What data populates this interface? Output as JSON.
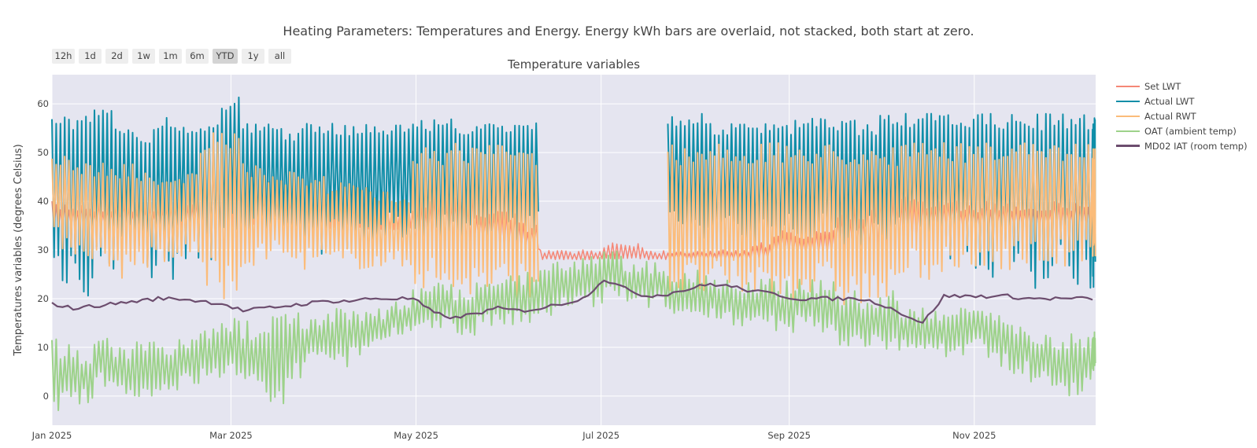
{
  "title": "Heating Parameters: Temperatures and Energy. Energy kWh bars are overlaid, not stacked, both start at zero.",
  "range_selector": {
    "buttons": [
      {
        "label": "12h",
        "active": false
      },
      {
        "label": "1d",
        "active": false
      },
      {
        "label": "2d",
        "active": false
      },
      {
        "label": "1w",
        "active": false
      },
      {
        "label": "1m",
        "active": false
      },
      {
        "label": "6m",
        "active": false
      },
      {
        "label": "YTD",
        "active": true
      },
      {
        "label": "1y",
        "active": false
      },
      {
        "label": "all",
        "active": false
      }
    ]
  },
  "chart_data": {
    "type": "line",
    "title": "Temperature variables",
    "xlabel": "",
    "ylabel": "Temperatures variables (degrees Celsius)",
    "x_range": [
      "2025-01-01",
      "2025-12-11"
    ],
    "ylim": [
      -6,
      66
    ],
    "x_ticks": [
      "Jan 2025",
      "Mar 2025",
      "May 2025",
      "Jul 2025",
      "Sep 2025",
      "Nov 2025"
    ],
    "y_ticks": [
      0,
      10,
      20,
      30,
      40,
      50,
      60
    ],
    "grid": true,
    "legend_position": "right",
    "x_sampling": "weekly",
    "x": [
      "Jan 1",
      "Jan 8",
      "Jan 15",
      "Jan 22",
      "Jan 29",
      "Feb 5",
      "Feb 12",
      "Feb 19",
      "Feb 26",
      "Mar 5",
      "Mar 12",
      "Mar 19",
      "Mar 26",
      "Apr 2",
      "Apr 9",
      "Apr 16",
      "Apr 23",
      "Apr 30",
      "May 7",
      "May 14",
      "May 21",
      "May 28",
      "Jun 4",
      "Jun 11",
      "Jun 18",
      "Jun 25",
      "Jul 2",
      "Jul 9",
      "Jul 16",
      "Jul 23",
      "Jul 30",
      "Aug 6",
      "Aug 13",
      "Aug 20",
      "Aug 27",
      "Sep 3",
      "Sep 10",
      "Sep 17",
      "Sep 24",
      "Oct 1",
      "Oct 8",
      "Oct 15",
      "Oct 22",
      "Oct 29",
      "Nov 5",
      "Nov 12",
      "Nov 19",
      "Nov 26",
      "Dec 3",
      "Dec 10"
    ],
    "series": [
      {
        "name": "Set LWT",
        "color": "#f58776",
        "low": [
          34,
          34,
          34,
          34,
          34,
          34,
          34,
          34,
          34,
          34,
          34,
          34,
          34,
          34,
          34,
          34,
          34,
          31,
          31,
          31,
          31,
          30,
          30,
          28,
          28,
          28,
          28,
          28,
          28,
          28,
          28,
          28,
          28,
          28,
          29,
          29,
          29,
          30,
          30,
          30,
          31,
          34,
          34,
          34,
          34,
          34,
          34,
          34,
          34,
          34
        ],
        "high": [
          40,
          40,
          40,
          40,
          40,
          40,
          42,
          50,
          52,
          48,
          44,
          44,
          42,
          42,
          42,
          40,
          40,
          42,
          44,
          42,
          40,
          38,
          36,
          30,
          30,
          30,
          32,
          32,
          30,
          30,
          30,
          30,
          30,
          32,
          34,
          34,
          36,
          40,
          40,
          44,
          44,
          40,
          40,
          40,
          40,
          40,
          40,
          40,
          40,
          40
        ]
      },
      {
        "name": "Actual LWT",
        "color": "#0f8ea8",
        "low": [
          22,
          20,
          24,
          28,
          24,
          22,
          28,
          26,
          28,
          30,
          30,
          28,
          28,
          30,
          30,
          30,
          30,
          30,
          31,
          30,
          30,
          30,
          30,
          null,
          null,
          null,
          null,
          null,
          null,
          30,
          30,
          30,
          30,
          30,
          30,
          30,
          30,
          30,
          30,
          30,
          28,
          28,
          28,
          26,
          24,
          24,
          22,
          22,
          22,
          22
        ],
        "high": [
          58,
          58,
          59,
          56,
          55,
          58,
          56,
          57,
          62,
          56,
          56,
          55,
          56,
          56,
          56,
          56,
          56,
          57,
          57,
          56,
          56,
          56,
          57,
          null,
          null,
          null,
          null,
          null,
          null,
          58,
          58,
          56,
          56,
          56,
          56,
          57,
          57,
          57,
          56,
          58,
          58,
          58,
          58,
          58,
          58,
          58,
          58,
          58,
          58,
          58
        ]
      },
      {
        "name": "Actual RWT",
        "color": "#fbbc7a",
        "low": [
          30,
          28,
          26,
          24,
          26,
          26,
          28,
          22,
          18,
          26,
          28,
          26,
          26,
          26,
          26,
          26,
          26,
          22,
          20,
          20,
          20,
          20,
          20,
          null,
          null,
          null,
          null,
          null,
          null,
          20,
          20,
          20,
          20,
          20,
          20,
          20,
          20,
          18,
          18,
          18,
          24,
          24,
          24,
          24,
          26,
          26,
          26,
          26,
          26,
          26
        ],
        "high": [
          50,
          48,
          48,
          48,
          46,
          46,
          46,
          54,
          54,
          48,
          46,
          46,
          46,
          44,
          44,
          42,
          42,
          52,
          52,
          52,
          52,
          52,
          52,
          null,
          null,
          null,
          null,
          null,
          null,
          52,
          52,
          52,
          52,
          52,
          52,
          52,
          52,
          52,
          52,
          52,
          52,
          52,
          52,
          52,
          52,
          52,
          52,
          52,
          52,
          52
        ]
      },
      {
        "name": "OAT (ambient temp)",
        "color": "#9dd28a",
        "low": [
          -3,
          -2,
          2,
          0,
          -1,
          1,
          2,
          3,
          4,
          0,
          -2,
          3,
          8,
          6,
          8,
          10,
          12,
          14,
          14,
          12,
          14,
          14,
          14,
          16,
          18,
          18,
          20,
          18,
          18,
          16,
          16,
          16,
          14,
          14,
          12,
          14,
          12,
          10,
          10,
          8,
          10,
          8,
          8,
          10,
          6,
          4,
          2,
          0,
          0,
          4
        ],
        "high": [
          12,
          10,
          12,
          10,
          12,
          10,
          12,
          14,
          16,
          16,
          18,
          18,
          16,
          18,
          18,
          18,
          20,
          22,
          24,
          22,
          24,
          26,
          26,
          28,
          28,
          30,
          30,
          28,
          28,
          26,
          26,
          24,
          24,
          24,
          24,
          24,
          24,
          22,
          20,
          22,
          18,
          18,
          18,
          18,
          18,
          16,
          14,
          12,
          14,
          14
        ]
      },
      {
        "name": "MD02 IAT (room temp)",
        "color": "#6c4d6e",
        "values": [
          19,
          18,
          18.5,
          19,
          19.5,
          20,
          20,
          19.5,
          19,
          17.5,
          18,
          18.5,
          19,
          19.5,
          19.5,
          20,
          20,
          20,
          17,
          16,
          17,
          18,
          17.5,
          18,
          19,
          20,
          24,
          22,
          20.5,
          21,
          22,
          23,
          22.5,
          21.5,
          21,
          20,
          20,
          20,
          20,
          19,
          17,
          15,
          20.5,
          20.5,
          20.5,
          20.5,
          20,
          20,
          20,
          20
        ]
      }
    ]
  }
}
